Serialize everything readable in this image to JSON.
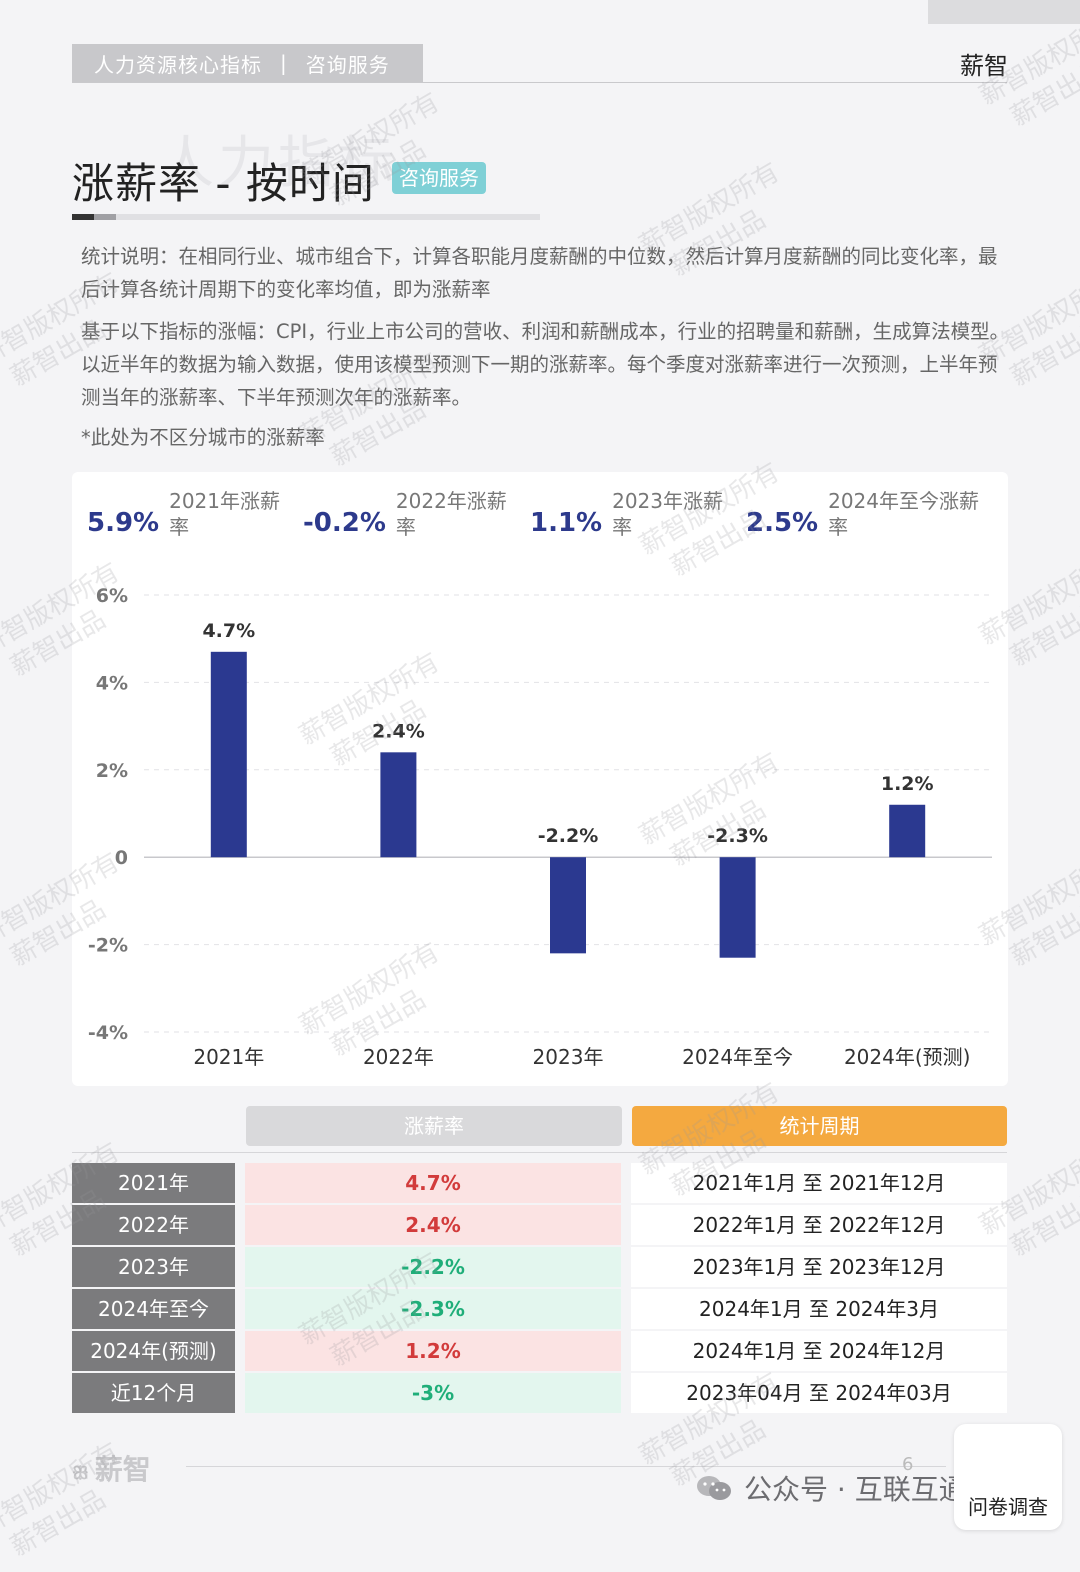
{
  "header": {
    "category": "人力资源核心指标",
    "separator": "|",
    "service": "咨询服务",
    "brand": "薪智"
  },
  "ghost_title": "人力指标",
  "page": {
    "title": "涨薪率 - 按时间",
    "badge": "咨询服务"
  },
  "notes": {
    "stat_desc": "统计说明：在相同行业、城市组合下，计算各职能月度薪酬的中位数，然后计算月度薪酬的同比变化率，最后计算各统计周期下的变化率均值，即为涨薪率",
    "model_desc": "基于以下指标的涨幅：CPI，行业上市公司的营收、利润和薪酬成本，行业的招聘量和薪酬，生成算法模型。以近半年的数据为输入数据，使用该模型预测下一期的涨薪率。每个季度对涨薪率进行一次预测，上半年预测当年的涨薪率、下半年预测次年的涨薪率。",
    "footnote": "*此处为不区分城市的涨薪率"
  },
  "kpis": [
    {
      "value": "5.9%",
      "label": "2021年涨薪率"
    },
    {
      "value": "-0.2%",
      "label": "2022年涨薪率"
    },
    {
      "value": "1.1%",
      "label": "2023年涨薪率"
    },
    {
      "value": "2.5%",
      "label": "2024年至今涨薪率"
    }
  ],
  "chart_data": {
    "type": "bar",
    "title": "",
    "xlabel": "",
    "ylabel": "",
    "categories": [
      "2021年",
      "2022年",
      "2023年",
      "2024年至今",
      "2024年(预测)"
    ],
    "values": [
      4.7,
      2.4,
      -2.2,
      -2.3,
      1.2
    ],
    "data_labels": [
      "4.7%",
      "2.4%",
      "-2.2%",
      "-2.3%",
      "1.2%"
    ],
    "ylim": [
      -4,
      6
    ],
    "yticks": [
      6,
      4,
      2,
      0,
      -2,
      -4
    ],
    "ytick_labels": [
      "6%",
      "4%",
      "2%",
      "0",
      "-2%",
      "-4%"
    ],
    "grid": true,
    "bar_color": "#2b3990"
  },
  "table": {
    "headers": {
      "rate": "涨薪率",
      "period": "统计周期"
    },
    "rows": [
      {
        "year": "2021年",
        "rate": "4.7%",
        "sign": "pos",
        "period": "2021年1月 至 2021年12月"
      },
      {
        "year": "2022年",
        "rate": "2.4%",
        "sign": "pos",
        "period": "2022年1月 至 2022年12月"
      },
      {
        "year": "2023年",
        "rate": "-2.2%",
        "sign": "neg",
        "period": "2023年1月 至 2023年12月"
      },
      {
        "year": "2024年至今",
        "rate": "-2.3%",
        "sign": "neg",
        "period": "2024年1月 至 2024年3月"
      },
      {
        "year": "2024年(预测)",
        "rate": "1.2%",
        "sign": "pos",
        "period": "2024年1月 至 2024年12月"
      },
      {
        "year": "近12个月",
        "rate": "-3%",
        "sign": "neg",
        "period": "2023年04月 至 2024年03月"
      }
    ]
  },
  "footer": {
    "logo": "薪智",
    "page_number": "6",
    "source": "公众号 · 互联互通社区",
    "survey": "问卷调查"
  },
  "watermark": {
    "line1": "薪智版权所有",
    "line2": "薪智出品"
  },
  "colors": {
    "bar": "#2b3990",
    "positive": "#d23b3b",
    "negative": "#1fae79",
    "period_header": "#f4a940",
    "badge": "#7fd0d6"
  }
}
